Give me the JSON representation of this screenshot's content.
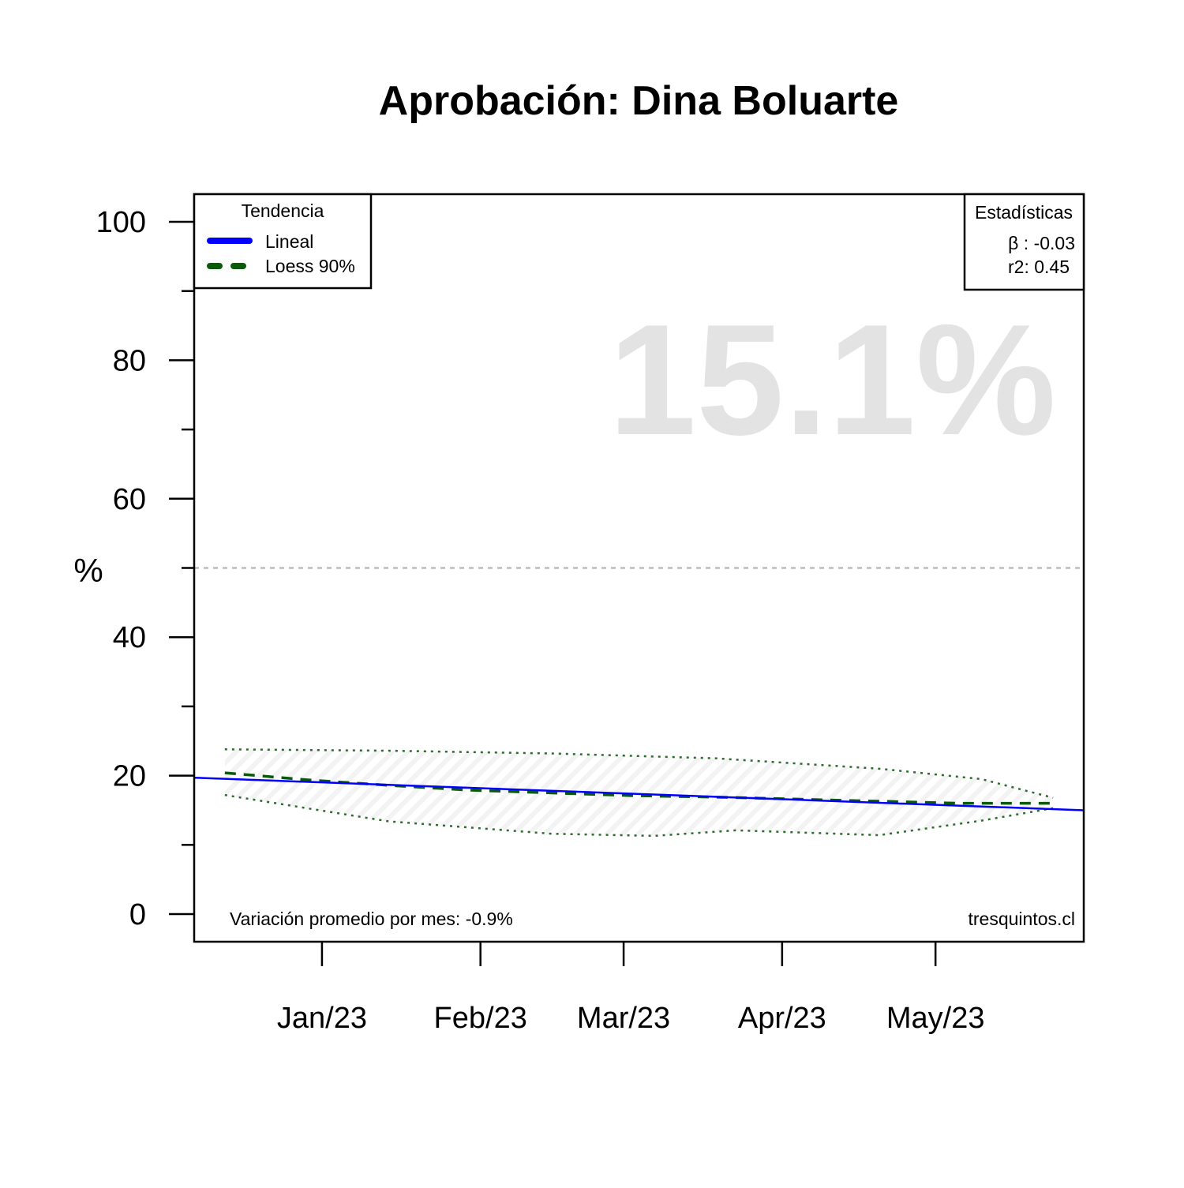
{
  "chart_data": {
    "type": "line",
    "title": "Aprobación: Dina Boluarte",
    "xlabel": "",
    "ylabel": "%",
    "ylim": [
      0,
      100
    ],
    "y_ticks": [
      0,
      20,
      40,
      60,
      80,
      100
    ],
    "x_range": [
      "2022-12-07",
      "2023-05-30"
    ],
    "x_ticks": [
      {
        "label": "Jan/23",
        "date": "2023-01-01"
      },
      {
        "label": "Feb/23",
        "date": "2023-02-01"
      },
      {
        "label": "Mar/23",
        "date": "2023-03-01"
      },
      {
        "label": "Apr/23",
        "date": "2023-04-01"
      },
      {
        "label": "May/23",
        "date": "2023-05-01"
      }
    ],
    "reference_line": {
      "y": 50,
      "color": "#bbbbbb",
      "style": "dotted"
    },
    "current_value_label": "15.1%",
    "series": [
      {
        "name": "Lineal",
        "color": "#0000ff",
        "points": [
          [
            "2022-12-07",
            19.7
          ],
          [
            "2023-05-30",
            15.0
          ]
        ]
      },
      {
        "name": "Loess 90%",
        "color": "#0b5a0b",
        "points": [
          [
            "2022-12-13",
            20.4
          ],
          [
            "2022-12-29",
            19.4
          ],
          [
            "2023-01-14",
            18.6
          ],
          [
            "2023-01-30",
            17.9
          ],
          [
            "2023-02-15",
            17.5
          ],
          [
            "2023-03-03",
            17.1
          ],
          [
            "2023-03-19",
            16.9
          ],
          [
            "2023-04-04",
            16.6
          ],
          [
            "2023-04-20",
            16.3
          ],
          [
            "2023-05-06",
            16.0
          ],
          [
            "2023-05-20",
            16.0
          ],
          [
            "2023-05-24",
            16.0
          ]
        ]
      }
    ],
    "confidence_band": {
      "upper": [
        [
          "2022-12-13",
          23.8
        ],
        [
          "2023-01-14",
          23.6
        ],
        [
          "2023-02-15",
          23.2
        ],
        [
          "2023-03-19",
          22.5
        ],
        [
          "2023-04-20",
          21.0
        ],
        [
          "2023-05-10",
          19.5
        ],
        [
          "2023-05-24",
          16.8
        ]
      ],
      "lower": [
        [
          "2022-12-13",
          17.2
        ],
        [
          "2023-01-14",
          13.4
        ],
        [
          "2023-02-15",
          11.6
        ],
        [
          "2023-03-07",
          11.3
        ],
        [
          "2023-03-23",
          12.1
        ],
        [
          "2023-04-20",
          11.4
        ],
        [
          "2023-05-10",
          13.5
        ],
        [
          "2023-05-24",
          15.3
        ]
      ]
    },
    "legend": {
      "title": "Tendencia",
      "position": "top-left",
      "entries": [
        {
          "label": "Lineal",
          "color": "#0000ff",
          "style": "solid"
        },
        {
          "label": "Loess 90%",
          "color": "#0b5a0b",
          "style": "dashed"
        }
      ]
    },
    "stats_box": {
      "title": "Estadísticas",
      "position": "top-right",
      "beta": "β : -0.03",
      "r2": "r2: 0.45"
    },
    "footnote_left": "Variación promedio por mes: -0.9%",
    "footnote_right": "tresquintos.cl"
  }
}
